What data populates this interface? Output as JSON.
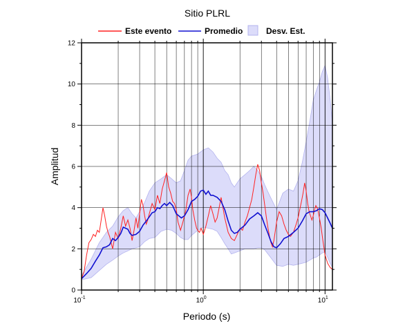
{
  "chart_data": {
    "type": "line",
    "title": "Sitio PLRL",
    "xlabel": "Periodo (s)",
    "ylabel": "Amplitud",
    "xscale": "log",
    "xlim": [
      0.1,
      11.5
    ],
    "ylim": [
      0,
      12
    ],
    "grid": true,
    "legend_position": "top",
    "x_ticks": [
      {
        "value": 0.1,
        "base": "10",
        "exp": "-1"
      },
      {
        "value": 1,
        "base": "10",
        "exp": "0"
      },
      {
        "value": 10,
        "base": "10",
        "exp": "1"
      }
    ],
    "y_ticks": [
      "0",
      "2",
      "4",
      "6",
      "8",
      "10",
      "12"
    ],
    "colors": {
      "event": "#ff2020",
      "mean": "#1010d0",
      "band_fill": "#dcdcfa",
      "band_edge": "#b4b4ee",
      "grid": "#000000"
    },
    "series": [
      {
        "name": "Este evento",
        "points": [
          [
            0.1,
            0.55
          ],
          [
            0.105,
            0.9
          ],
          [
            0.11,
            1.7
          ],
          [
            0.115,
            2.3
          ],
          [
            0.12,
            2.45
          ],
          [
            0.125,
            2.7
          ],
          [
            0.13,
            2.6
          ],
          [
            0.135,
            2.9
          ],
          [
            0.14,
            2.8
          ],
          [
            0.145,
            3.4
          ],
          [
            0.15,
            4.0
          ],
          [
            0.155,
            3.6
          ],
          [
            0.16,
            3.1
          ],
          [
            0.165,
            2.8
          ],
          [
            0.17,
            2.6
          ],
          [
            0.175,
            2.3
          ],
          [
            0.18,
            2.0
          ],
          [
            0.185,
            2.4
          ],
          [
            0.19,
            2.8
          ],
          [
            0.2,
            2.5
          ],
          [
            0.21,
            3.0
          ],
          [
            0.22,
            3.6
          ],
          [
            0.23,
            3.1
          ],
          [
            0.24,
            3.4
          ],
          [
            0.25,
            3.0
          ],
          [
            0.26,
            2.4
          ],
          [
            0.27,
            2.9
          ],
          [
            0.28,
            3.5
          ],
          [
            0.29,
            3.0
          ],
          [
            0.3,
            3.7
          ],
          [
            0.31,
            4.4
          ],
          [
            0.32,
            4.1
          ],
          [
            0.33,
            3.6
          ],
          [
            0.34,
            3.2
          ],
          [
            0.35,
            3.4
          ],
          [
            0.36,
            3.7
          ],
          [
            0.38,
            4.2
          ],
          [
            0.4,
            3.9
          ],
          [
            0.42,
            4.6
          ],
          [
            0.44,
            4.2
          ],
          [
            0.46,
            4.9
          ],
          [
            0.48,
            5.3
          ],
          [
            0.5,
            5.7
          ],
          [
            0.52,
            5.0
          ],
          [
            0.54,
            4.7
          ],
          [
            0.56,
            4.3
          ],
          [
            0.58,
            4.2
          ],
          [
            0.6,
            3.9
          ],
          [
            0.62,
            3.3
          ],
          [
            0.65,
            2.9
          ],
          [
            0.68,
            3.3
          ],
          [
            0.7,
            3.6
          ],
          [
            0.72,
            3.9
          ],
          [
            0.75,
            4.6
          ],
          [
            0.78,
            4.9
          ],
          [
            0.8,
            4.5
          ],
          [
            0.82,
            3.9
          ],
          [
            0.85,
            3.4
          ],
          [
            0.88,
            3.0
          ],
          [
            0.9,
            2.9
          ],
          [
            0.93,
            2.8
          ],
          [
            0.96,
            3.0
          ],
          [
            1.0,
            2.7
          ],
          [
            1.05,
            3.1
          ],
          [
            1.1,
            3.6
          ],
          [
            1.15,
            4.1
          ],
          [
            1.2,
            3.7
          ],
          [
            1.25,
            3.3
          ],
          [
            1.3,
            3.5
          ],
          [
            1.35,
            4.0
          ],
          [
            1.4,
            4.5
          ],
          [
            1.45,
            4.0
          ],
          [
            1.5,
            3.5
          ],
          [
            1.6,
            2.8
          ],
          [
            1.7,
            2.5
          ],
          [
            1.8,
            2.4
          ],
          [
            1.9,
            2.7
          ],
          [
            2.0,
            3.0
          ],
          [
            2.1,
            2.9
          ],
          [
            2.2,
            3.3
          ],
          [
            2.3,
            3.6
          ],
          [
            2.4,
            4.0
          ],
          [
            2.5,
            4.4
          ],
          [
            2.6,
            5.0
          ],
          [
            2.7,
            5.6
          ],
          [
            2.8,
            6.1
          ],
          [
            2.9,
            5.8
          ],
          [
            3.0,
            5.2
          ],
          [
            3.1,
            4.7
          ],
          [
            3.2,
            4.1
          ],
          [
            3.3,
            3.5
          ],
          [
            3.4,
            3.0
          ],
          [
            3.5,
            2.6
          ],
          [
            3.6,
            2.3
          ],
          [
            3.7,
            2.1
          ],
          [
            3.8,
            2.4
          ],
          [
            4.0,
            3.3
          ],
          [
            4.2,
            3.8
          ],
          [
            4.4,
            3.6
          ],
          [
            4.6,
            3.2
          ],
          [
            4.8,
            2.9
          ],
          [
            5.0,
            2.7
          ],
          [
            5.2,
            2.6
          ],
          [
            5.5,
            2.8
          ],
          [
            5.8,
            3.2
          ],
          [
            6.0,
            3.5
          ],
          [
            6.2,
            3.9
          ],
          [
            6.4,
            4.3
          ],
          [
            6.6,
            4.7
          ],
          [
            6.8,
            5.2
          ],
          [
            7.0,
            4.8
          ],
          [
            7.2,
            4.2
          ],
          [
            7.4,
            3.8
          ],
          [
            7.6,
            3.6
          ],
          [
            7.8,
            3.4
          ],
          [
            8.0,
            3.6
          ],
          [
            8.2,
            3.9
          ],
          [
            8.4,
            4.1
          ],
          [
            8.6,
            4.0
          ],
          [
            8.8,
            3.8
          ],
          [
            9.0,
            3.5
          ],
          [
            9.3,
            3.0
          ],
          [
            9.6,
            2.4
          ],
          [
            10.0,
            1.7
          ],
          [
            10.5,
            1.3
          ],
          [
            11.0,
            1.1
          ],
          [
            11.5,
            1.0
          ]
        ]
      },
      {
        "name": "Promedio",
        "points": [
          [
            0.1,
            0.55
          ],
          [
            0.11,
            0.8
          ],
          [
            0.12,
            1.05
          ],
          [
            0.13,
            1.4
          ],
          [
            0.14,
            1.7
          ],
          [
            0.15,
            2.05
          ],
          [
            0.16,
            2.1
          ],
          [
            0.17,
            2.2
          ],
          [
            0.18,
            2.5
          ],
          [
            0.19,
            2.4
          ],
          [
            0.2,
            2.55
          ],
          [
            0.21,
            2.75
          ],
          [
            0.22,
            3.05
          ],
          [
            0.23,
            3.0
          ],
          [
            0.24,
            2.95
          ],
          [
            0.25,
            2.75
          ],
          [
            0.26,
            2.65
          ],
          [
            0.28,
            2.7
          ],
          [
            0.3,
            2.85
          ],
          [
            0.32,
            3.15
          ],
          [
            0.34,
            3.35
          ],
          [
            0.36,
            3.55
          ],
          [
            0.38,
            3.75
          ],
          [
            0.4,
            3.8
          ],
          [
            0.42,
            4.0
          ],
          [
            0.44,
            3.95
          ],
          [
            0.46,
            4.1
          ],
          [
            0.48,
            4.2
          ],
          [
            0.5,
            4.1
          ],
          [
            0.53,
            4.25
          ],
          [
            0.56,
            4.1
          ],
          [
            0.6,
            3.7
          ],
          [
            0.63,
            3.6
          ],
          [
            0.66,
            3.5
          ],
          [
            0.7,
            3.6
          ],
          [
            0.75,
            3.9
          ],
          [
            0.8,
            4.3
          ],
          [
            0.85,
            4.4
          ],
          [
            0.9,
            4.55
          ],
          [
            0.95,
            4.8
          ],
          [
            1.0,
            4.85
          ],
          [
            1.05,
            4.65
          ],
          [
            1.1,
            4.8
          ],
          [
            1.15,
            4.6
          ],
          [
            1.2,
            4.6
          ],
          [
            1.3,
            4.5
          ],
          [
            1.4,
            4.3
          ],
          [
            1.5,
            3.9
          ],
          [
            1.6,
            3.35
          ],
          [
            1.7,
            2.9
          ],
          [
            1.8,
            2.75
          ],
          [
            1.9,
            2.8
          ],
          [
            2.0,
            2.95
          ],
          [
            2.2,
            3.15
          ],
          [
            2.4,
            3.45
          ],
          [
            2.6,
            3.6
          ],
          [
            2.8,
            3.75
          ],
          [
            3.0,
            3.6
          ],
          [
            3.2,
            3.15
          ],
          [
            3.4,
            2.75
          ],
          [
            3.6,
            2.35
          ],
          [
            3.8,
            2.1
          ],
          [
            4.0,
            2.05
          ],
          [
            4.3,
            2.25
          ],
          [
            4.6,
            2.5
          ],
          [
            5.0,
            2.6
          ],
          [
            5.5,
            2.8
          ],
          [
            6.0,
            3.0
          ],
          [
            6.5,
            3.35
          ],
          [
            7.0,
            3.7
          ],
          [
            7.5,
            3.8
          ],
          [
            8.0,
            3.8
          ],
          [
            8.5,
            3.85
          ],
          [
            9.0,
            3.95
          ],
          [
            9.5,
            3.9
          ],
          [
            10.0,
            3.75
          ],
          [
            10.5,
            3.5
          ],
          [
            11.0,
            3.25
          ],
          [
            11.5,
            3.0
          ]
        ]
      }
    ],
    "band": {
      "name": "Desv. Est.",
      "x": [
        0.1,
        0.12,
        0.14,
        0.16,
        0.18,
        0.2,
        0.22,
        0.24,
        0.26,
        0.28,
        0.3,
        0.33,
        0.36,
        0.4,
        0.45,
        0.5,
        0.55,
        0.6,
        0.65,
        0.7,
        0.75,
        0.8,
        0.9,
        1.0,
        1.1,
        1.2,
        1.3,
        1.4,
        1.5,
        1.6,
        1.7,
        1.8,
        2.0,
        2.2,
        2.4,
        2.6,
        2.8,
        3.0,
        3.2,
        3.5,
        4.0,
        4.5,
        5.0,
        5.5,
        6.0,
        6.5,
        7.0,
        7.5,
        8.0,
        8.5,
        9.0,
        9.5,
        10.0,
        10.5,
        11.0,
        11.5
      ],
      "upper": [
        0.7,
        1.5,
        2.3,
        2.8,
        3.1,
        3.55,
        3.85,
        4.0,
        3.7,
        3.5,
        3.8,
        4.25,
        4.8,
        5.2,
        5.4,
        5.6,
        5.4,
        5.2,
        5.3,
        5.8,
        6.3,
        6.5,
        6.6,
        6.8,
        6.9,
        6.7,
        6.4,
        6.2,
        5.8,
        5.6,
        5.2,
        5.0,
        5.4,
        5.6,
        5.8,
        6.0,
        5.8,
        5.5,
        5.1,
        4.6,
        3.9,
        4.7,
        4.9,
        4.8,
        5.3,
        6.2,
        7.2,
        8.2,
        9.2,
        9.7,
        10.1,
        10.6,
        10.9,
        10.3,
        9.3,
        8.1
      ],
      "lower": [
        0.5,
        0.6,
        0.95,
        1.25,
        1.45,
        1.65,
        1.8,
        1.9,
        2.0,
        2.05,
        2.1,
        2.35,
        2.5,
        2.55,
        2.85,
        2.95,
        2.9,
        2.75,
        2.55,
        2.45,
        2.45,
        2.65,
        2.9,
        3.05,
        3.0,
        2.95,
        2.85,
        2.55,
        2.25,
        2.0,
        1.75,
        1.8,
        1.9,
        2.0,
        2.0,
        2.0,
        2.05,
        2.05,
        1.95,
        1.65,
        1.2,
        1.15,
        1.25,
        1.2,
        1.25,
        1.3,
        1.35,
        1.45,
        1.55,
        1.6,
        1.7,
        1.8,
        1.85,
        1.6,
        1.3,
        1.1
      ]
    }
  }
}
